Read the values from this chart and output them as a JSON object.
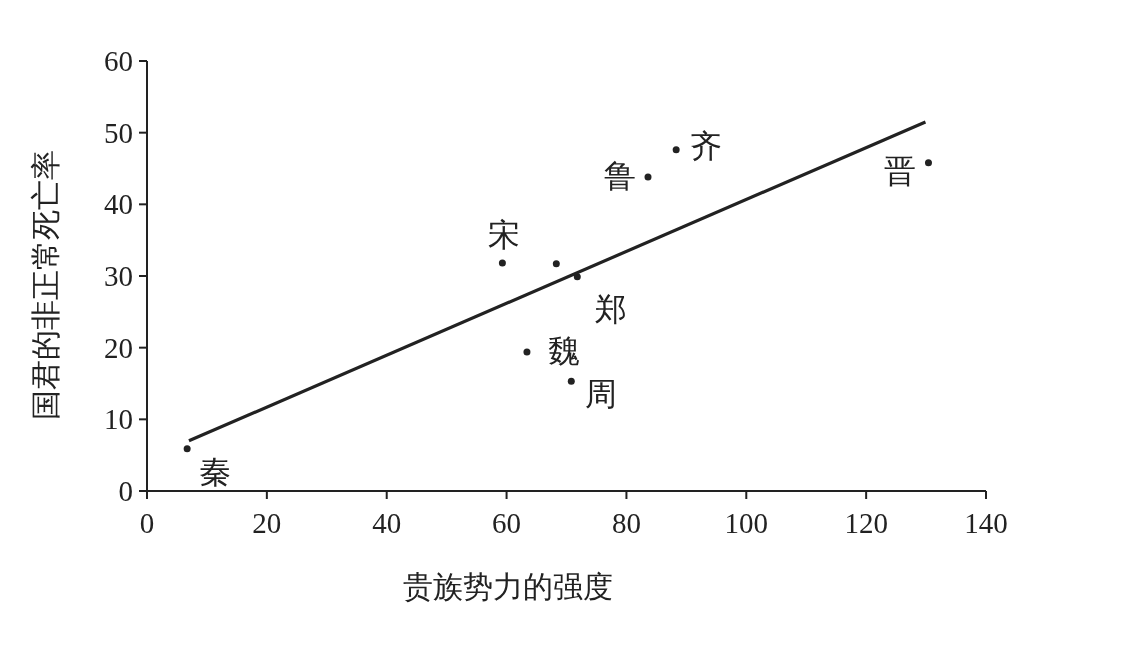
{
  "chart_data": {
    "type": "scatter",
    "xlabel": "贵族势力的强度",
    "ylabel": "国君的非正常死亡率",
    "xlim": [
      0,
      140
    ],
    "ylim": [
      0,
      60
    ],
    "xticks": [
      0,
      20,
      40,
      60,
      80,
      100,
      120,
      140
    ],
    "yticks": [
      0,
      10,
      20,
      30,
      40,
      50,
      60
    ],
    "grid": false,
    "marker": "circle",
    "series": [
      {
        "type": "scatter",
        "color": "#222222",
        "x": [
          6.7,
          59.3,
          68.3,
          71.8,
          63.4,
          70.8,
          83.6,
          88.3,
          130.4
        ],
        "values": [
          5.9,
          31.8,
          31.7,
          29.9,
          19.4,
          15.3,
          43.8,
          47.6,
          45.8
        ]
      },
      {
        "type": "line",
        "color": "#222222",
        "line_style": "solid",
        "marker": "none",
        "x": [
          7.0,
          129.9
        ],
        "values": [
          7.0,
          51.5
        ]
      }
    ],
    "annotations": [
      {
        "text": "秦",
        "x": 6.7,
        "y": 5.9
      },
      {
        "text": "宋",
        "x": 59.3,
        "y": 31.8
      },
      {
        "text": "郑",
        "x": 71.8,
        "y": 29.9
      },
      {
        "text": "魏",
        "x": 63.4,
        "y": 19.4
      },
      {
        "text": "周",
        "x": 70.8,
        "y": 15.3
      },
      {
        "text": "鲁",
        "x": 83.6,
        "y": 43.8
      },
      {
        "text": "齐",
        "x": 88.3,
        "y": 47.6
      },
      {
        "text": "晋",
        "x": 130.4,
        "y": 45.8
      }
    ]
  }
}
